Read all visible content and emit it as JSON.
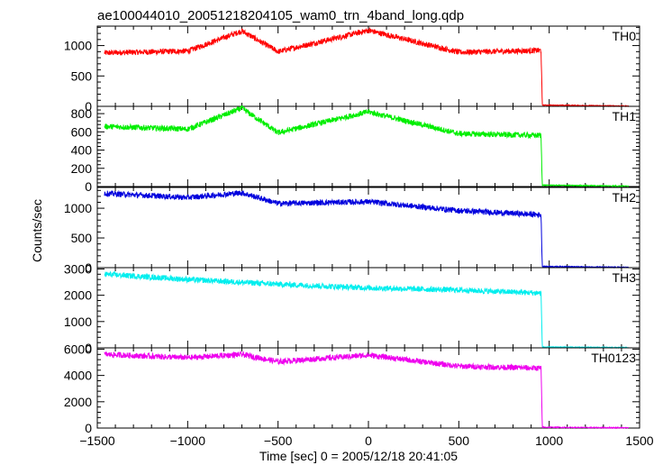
{
  "chart_data": {
    "type": "line",
    "title": "ae100044010_20051218204105_wam0_trn_4band_long.qdp",
    "xlabel": "Time [sec] 0 = 2005/12/18 20:41:05",
    "ylabel": "Counts/sec",
    "xlim": [
      -1500,
      1500
    ],
    "xticks": [
      -1500,
      -1000,
      -500,
      0,
      500,
      1000,
      1500
    ],
    "x_range_data": [
      -1460,
      1440
    ],
    "drop_time": 960,
    "grid": false,
    "panels": [
      {
        "name": "TH0",
        "color": "#ff0000",
        "ylim": [
          0,
          1320
        ],
        "yticks": [
          0,
          500,
          1000
        ],
        "x": [
          -1460,
          -1000,
          -700,
          -500,
          0,
          500,
          955,
          962,
          1440
        ],
        "values": [
          880,
          910,
          1240,
          900,
          1250,
          890,
          920,
          20,
          5
        ]
      },
      {
        "name": "TH1",
        "color": "#00ee00",
        "ylim": [
          0,
          880
        ],
        "yticks": [
          0,
          200,
          400,
          600,
          800
        ],
        "x": [
          -1460,
          -1000,
          -700,
          -500,
          0,
          500,
          955,
          962,
          1440
        ],
        "values": [
          660,
          630,
          860,
          590,
          820,
          580,
          560,
          15,
          5
        ]
      },
      {
        "name": "TH2",
        "color": "#0000dd",
        "ylim": [
          0,
          1350
        ],
        "yticks": [
          0,
          500,
          1000
        ],
        "x": [
          -1460,
          -1000,
          -700,
          -500,
          0,
          500,
          955,
          962,
          1440
        ],
        "values": [
          1250,
          1180,
          1260,
          1080,
          1110,
          960,
          890,
          20,
          5
        ]
      },
      {
        "name": "TH3",
        "color": "#00eeee",
        "ylim": [
          0,
          3050
        ],
        "yticks": [
          0,
          1000,
          2000,
          3000
        ],
        "x": [
          -1460,
          -1000,
          -500,
          0,
          500,
          955,
          962,
          1440
        ],
        "values": [
          2800,
          2600,
          2420,
          2280,
          2200,
          2080,
          30,
          10
        ]
      },
      {
        "name": "TH0123",
        "color": "#ee00ee",
        "ylim": [
          0,
          6100
        ],
        "yticks": [
          0,
          2000,
          4000,
          6000
        ],
        "x": [
          -1460,
          -1000,
          -700,
          -500,
          0,
          500,
          955,
          962,
          1440
        ],
        "values": [
          5600,
          5350,
          5600,
          5050,
          5550,
          4700,
          4550,
          60,
          20
        ]
      }
    ]
  }
}
